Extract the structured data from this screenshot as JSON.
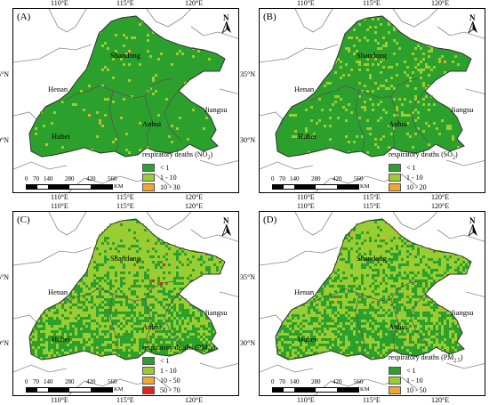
{
  "axes": {
    "x_labels": [
      "110°E",
      "115°E",
      "120°E"
    ],
    "y_labels": [
      "35°N",
      "30°N"
    ]
  },
  "regions": [
    "Shandong",
    "Henan",
    "Anhui",
    "Jiangsu",
    "Hubei"
  ],
  "scalebar": {
    "ticks": [
      "0",
      "70",
      "140",
      "280",
      "420",
      "560"
    ],
    "unit": "KM"
  },
  "north_label": "N",
  "colors": {
    "class1": "#2ca02c",
    "class2": "#9acd32",
    "class3": "#f0a830",
    "class4": "#e8201c",
    "boundary": "#888888"
  },
  "panels": [
    {
      "label": "(A)",
      "legend_title": "respiratory deaths (NO",
      "legend_sub": "2",
      "legend_items": [
        "< 1",
        "1 - 10",
        "10 - 30"
      ],
      "light_fraction": 0.04
    },
    {
      "label": "(B)",
      "legend_title": "respiratory deaths (SO",
      "legend_sub": "2",
      "legend_items": [
        "< 1",
        "1 - 10",
        "10 - 20"
      ],
      "light_fraction": 0.12
    },
    {
      "label": "(C)",
      "legend_title": "respiratory deaths (PM",
      "legend_sub": "10",
      "legend_items": [
        "< 1",
        "1 - 10",
        "10 - 50",
        "50 - 70"
      ],
      "light_fraction": 0.65
    },
    {
      "label": "(D)",
      "legend_title": "respiratory deaths (PM",
      "legend_sub": "2.5",
      "legend_items": [
        "< 1",
        "1 - 10",
        "10 - 50"
      ],
      "light_fraction": 0.6
    }
  ]
}
